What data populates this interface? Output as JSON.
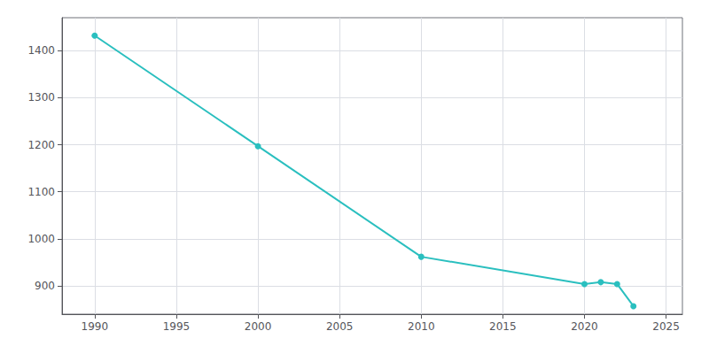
{
  "chart_data": {
    "type": "line",
    "x": [
      1990,
      2000,
      2010,
      2020,
      2021,
      2022,
      2023
    ],
    "values": [
      1432,
      1197,
      962,
      904,
      908,
      904,
      857
    ],
    "color": "#2abfbf",
    "marker": "circle",
    "xlim": [
      1988,
      2026
    ],
    "ylim": [
      840,
      1470
    ],
    "xticks": [
      1990,
      1995,
      2000,
      2005,
      2010,
      2015,
      2020,
      2025
    ],
    "yticks": [
      900,
      1000,
      1100,
      1200,
      1300,
      1400
    ],
    "grid": true
  }
}
